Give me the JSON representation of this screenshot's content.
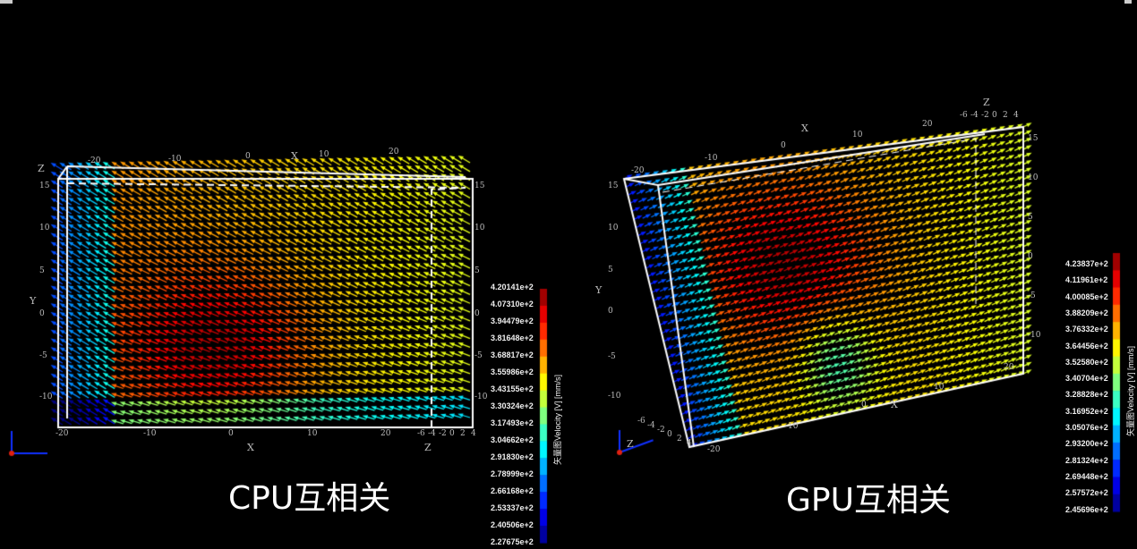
{
  "panels": [
    {
      "caption": "CPU互相关",
      "axis_labels": {
        "x": "X",
        "y": "Y",
        "z": "Z"
      },
      "x_ticks": [
        "-20",
        "-10",
        "0",
        "10",
        "20"
      ],
      "y_ticks": [
        "15",
        "10",
        "5",
        "0",
        "-5",
        "-10"
      ],
      "z_ticks": [
        "-6",
        "-4",
        "-2",
        "0",
        "2",
        "4"
      ],
      "colorbar": {
        "title": "矢量图Velocity [V] [mm/s]",
        "labels": [
          "4.20141e+2",
          "4.07310e+2",
          "3.94479e+2",
          "3.81648e+2",
          "3.68817e+2",
          "3.55986e+2",
          "3.43155e+2",
          "3.30324e+2",
          "3.17493e+2",
          "3.04662e+2",
          "2.91830e+2",
          "2.78999e+2",
          "2.66168e+2",
          "2.53337e+2",
          "2.40506e+2",
          "2.27675e+2"
        ]
      }
    },
    {
      "caption": "GPU互相关",
      "axis_labels": {
        "x": "X",
        "y": "Y",
        "z": "Z"
      },
      "x_ticks": [
        "-20",
        "-10",
        "0",
        "10",
        "20"
      ],
      "y_ticks": [
        "15",
        "10",
        "5",
        "0",
        "-5",
        "-10"
      ],
      "z_ticks": [
        "-6",
        "-4",
        "-2",
        "0",
        "2",
        "4"
      ],
      "colorbar": {
        "title": "矢量图Velocity [V] [mm/s]",
        "labels": [
          "4.23837e+2",
          "4.11961e+2",
          "4.00085e+2",
          "3.88209e+2",
          "3.76332e+2",
          "3.64456e+2",
          "3.52580e+2",
          "3.40704e+2",
          "3.28828e+2",
          "3.16952e+2",
          "3.05076e+2",
          "2.93200e+2",
          "2.81324e+2",
          "2.69448e+2",
          "2.57572e+2",
          "2.45696e+2"
        ]
      }
    }
  ],
  "chart_data": [
    {
      "type": "quiver-3d",
      "title": "CPU互相关",
      "xlabel": "X",
      "ylabel": "Y",
      "zlabel": "Z",
      "xlim": [
        -20,
        25
      ],
      "ylim": [
        -13,
        15
      ],
      "zlim": [
        -6,
        4
      ],
      "color_scale": "jet",
      "color_range": [
        227.675,
        420.141
      ],
      "colorbar_label": "矢量图Velocity [V] [mm/s]"
    },
    {
      "type": "quiver-3d",
      "title": "GPU互相关",
      "xlabel": "X",
      "ylabel": "Y",
      "zlabel": "Z",
      "xlim": [
        -20,
        25
      ],
      "ylim": [
        -13,
        15
      ],
      "zlim": [
        -6,
        4
      ],
      "color_scale": "jet",
      "color_range": [
        245.696,
        423.837
      ],
      "colorbar_label": "矢量图Velocity [V] [mm/s]"
    }
  ],
  "colors": {
    "background": "#000000",
    "box": "#ffffff"
  }
}
